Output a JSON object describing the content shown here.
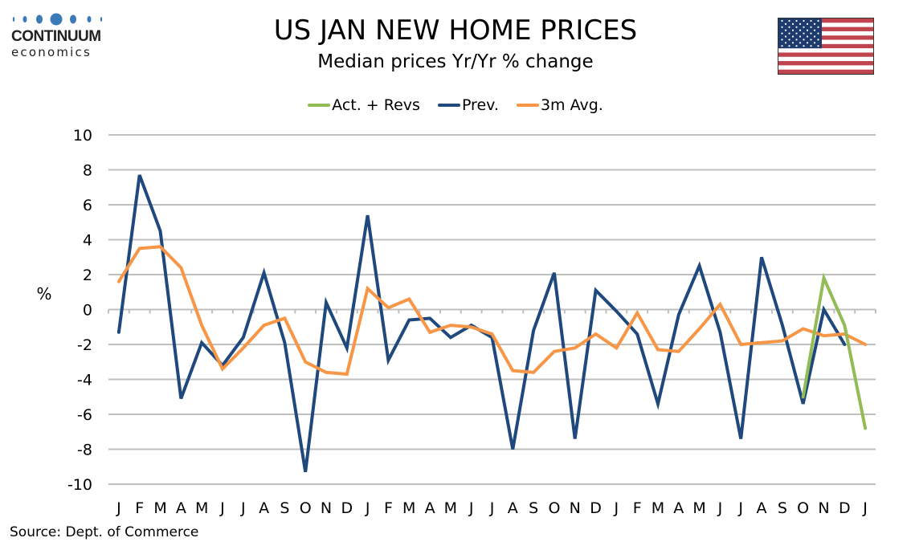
{
  "logo": {
    "name": "CONTINUUM",
    "sub": "economics"
  },
  "title": "US JAN NEW HOME PRICES",
  "subtitle": "Median prices Yr/Yr % change",
  "flag_icon": "us-flag-icon",
  "source": "Source: Dept. of Commerce",
  "colors": {
    "act": "#92bc55",
    "prev": "#1f497d",
    "avg": "#f79646",
    "grid": "#bfbfbf"
  },
  "chart_data": {
    "type": "line",
    "title": "US JAN NEW HOME PRICES",
    "subtitle": "Median prices Yr/Yr % change",
    "xlabel": "",
    "ylabel": "%",
    "ylim": [
      -10,
      10
    ],
    "yticks": [
      10,
      8,
      6,
      4,
      2,
      0,
      -2,
      -4,
      -6,
      -8,
      -10
    ],
    "grid": true,
    "legend_position": "top-center",
    "categories": [
      "J",
      "F",
      "M",
      "A",
      "M",
      "J",
      "J",
      "A",
      "S",
      "O",
      "N",
      "D",
      "J",
      "F",
      "M",
      "A",
      "M",
      "J",
      "J",
      "A",
      "S",
      "O",
      "N",
      "D",
      "J",
      "F",
      "M",
      "A",
      "M",
      "J",
      "J",
      "A",
      "S",
      "O",
      "N",
      "D",
      "J"
    ],
    "series": [
      {
        "name": "Act. + Revs",
        "color": "#92bc55",
        "values": [
          null,
          null,
          null,
          null,
          null,
          null,
          null,
          null,
          null,
          null,
          null,
          null,
          null,
          null,
          null,
          null,
          null,
          null,
          null,
          null,
          null,
          null,
          null,
          null,
          null,
          null,
          null,
          null,
          null,
          null,
          null,
          null,
          null,
          -5.0,
          1.8,
          -0.9,
          -6.8
        ]
      },
      {
        "name": "Prev.",
        "color": "#1f497d",
        "values": [
          -1.3,
          7.7,
          4.5,
          -5.1,
          -1.9,
          -3.2,
          -1.6,
          2.1,
          -1.9,
          -9.3,
          0.4,
          -2.2,
          5.4,
          -2.9,
          -0.6,
          -0.5,
          -1.6,
          -0.9,
          -1.6,
          -8.0,
          -1.2,
          2.1,
          -7.4,
          1.1,
          -0.1,
          -1.4,
          -5.4,
          -0.3,
          2.5,
          -1.3,
          -7.4,
          3.0,
          -0.9,
          -5.4,
          0.0,
          -2.0,
          null
        ]
      },
      {
        "name": "3m Avg.",
        "color": "#f79646",
        "values": [
          1.6,
          3.5,
          3.6,
          2.4,
          -0.9,
          -3.4,
          -2.2,
          -0.9,
          -0.5,
          -3.0,
          -3.6,
          -3.7,
          1.2,
          0.1,
          0.6,
          -1.3,
          -0.9,
          -1.0,
          -1.4,
          -3.5,
          -3.6,
          -2.4,
          -2.2,
          -1.4,
          -2.2,
          -0.2,
          -2.3,
          -2.4,
          -1.1,
          0.3,
          -2.0,
          -1.9,
          -1.8,
          -1.1,
          -1.5,
          -1.4,
          -2.0
        ]
      }
    ]
  }
}
